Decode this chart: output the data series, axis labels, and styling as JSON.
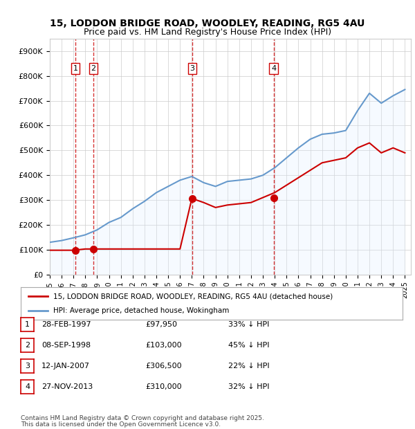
{
  "title_line1": "15, LODDON BRIDGE ROAD, WOODLEY, READING, RG5 4AU",
  "title_line2": "Price paid vs. HM Land Registry's House Price Index (HPI)",
  "ylabel": "",
  "xlim_start": 1995.0,
  "xlim_end": 2025.5,
  "ylim_min": 0,
  "ylim_max": 950000,
  "sale_dates": [
    1997.16,
    1998.69,
    2007.04,
    2013.91
  ],
  "sale_prices": [
    97950,
    103000,
    306500,
    310000
  ],
  "sale_labels": [
    "1",
    "2",
    "3",
    "4"
  ],
  "sale_label_dates": [
    "28-FEB-1997",
    "08-SEP-1998",
    "12-JAN-2007",
    "27-NOV-2013"
  ],
  "sale_label_prices": [
    "£97,950",
    "£103,000",
    "£306,500",
    "£310,000"
  ],
  "sale_label_hpi": [
    "33% ↓ HPI",
    "45% ↓ HPI",
    "22% ↓ HPI",
    "32% ↓ HPI"
  ],
  "legend_line1": "15, LODDON BRIDGE ROAD, WOODLEY, READING, RG5 4AU (detached house)",
  "legend_line2": "HPI: Average price, detached house, Wokingham",
  "footer_line1": "Contains HM Land Registry data © Crown copyright and database right 2025.",
  "footer_line2": "This data is licensed under the Open Government Licence v3.0.",
  "red_color": "#cc0000",
  "blue_color": "#6699cc",
  "blue_fill_color": "#ddeeff",
  "vline_color": "#cc0000",
  "grid_color": "#cccccc",
  "background_color": "#ffffff",
  "hpi_years": [
    1995,
    1996,
    1997,
    1998,
    1999,
    2000,
    2001,
    2002,
    2003,
    2004,
    2005,
    2006,
    2007,
    2008,
    2009,
    2010,
    2011,
    2012,
    2013,
    2014,
    2015,
    2016,
    2017,
    2018,
    2019,
    2020,
    2021,
    2022,
    2023,
    2024,
    2025
  ],
  "hpi_values": [
    130000,
    137000,
    148000,
    160000,
    180000,
    210000,
    230000,
    265000,
    295000,
    330000,
    355000,
    380000,
    395000,
    370000,
    355000,
    375000,
    380000,
    385000,
    400000,
    430000,
    470000,
    510000,
    545000,
    565000,
    570000,
    580000,
    660000,
    730000,
    690000,
    720000,
    745000
  ],
  "price_years": [
    1995,
    1996,
    1997,
    1998,
    1999,
    2000,
    2001,
    2002,
    2003,
    2004,
    2005,
    2006,
    2007,
    2008,
    2009,
    2010,
    2011,
    2012,
    2013,
    2014,
    2015,
    2016,
    2017,
    2018,
    2019,
    2020,
    2021,
    2022,
    2023,
    2024,
    2025
  ],
  "price_values": [
    97950,
    97950,
    97950,
    103000,
    103000,
    103000,
    103000,
    103000,
    103000,
    103000,
    103000,
    103000,
    306500,
    290000,
    270000,
    280000,
    285000,
    290000,
    310000,
    330000,
    360000,
    390000,
    420000,
    450000,
    460000,
    470000,
    510000,
    530000,
    490000,
    510000,
    490000
  ]
}
